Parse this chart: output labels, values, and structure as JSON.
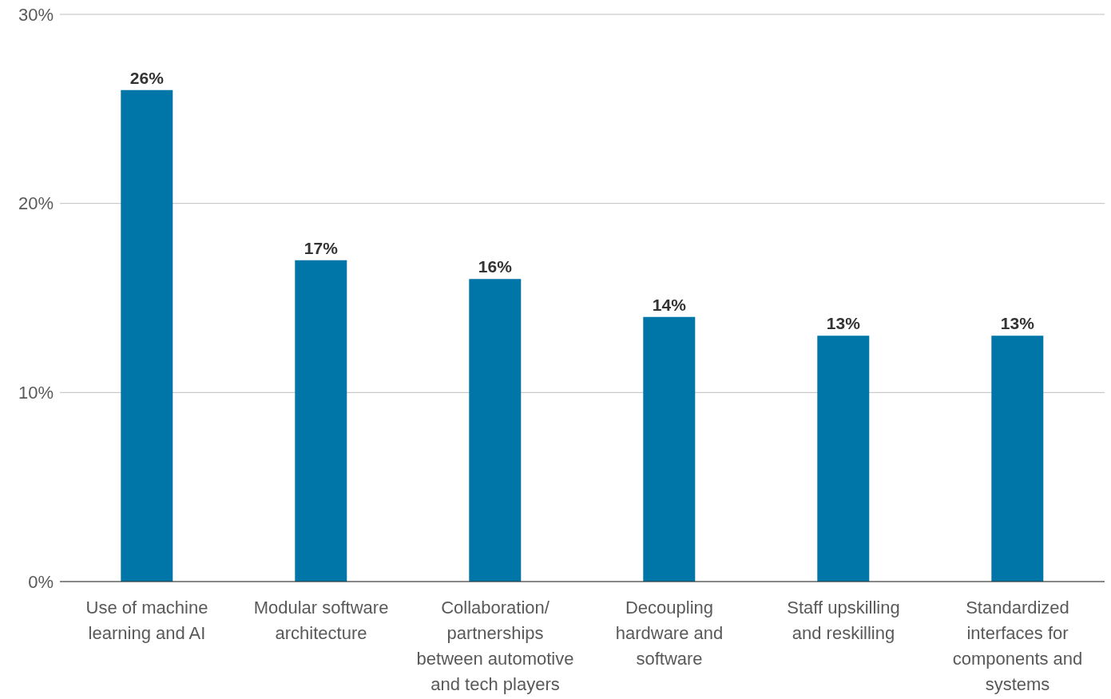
{
  "chart_data": {
    "type": "bar",
    "categories": [
      "Use of machine learning and AI",
      "Modular software architecture",
      "Collaboration/ partnerships between automotive and tech players",
      "Decoupling hardware and software",
      "Staff upskilling and reskilling",
      "Standardized interfaces for components and systems"
    ],
    "values": [
      26,
      17,
      16,
      14,
      13,
      13
    ],
    "value_labels": [
      "26%",
      "17%",
      "16%",
      "14%",
      "13%",
      "13%"
    ],
    "color": "#0076a8",
    "ylim": [
      0,
      30
    ],
    "yticks": [
      {
        "value": 0,
        "label": "0%"
      },
      {
        "value": 10,
        "label": "10%"
      },
      {
        "value": 20,
        "label": "20%"
      },
      {
        "value": 30,
        "label": "30%"
      }
    ],
    "grid": "y"
  }
}
